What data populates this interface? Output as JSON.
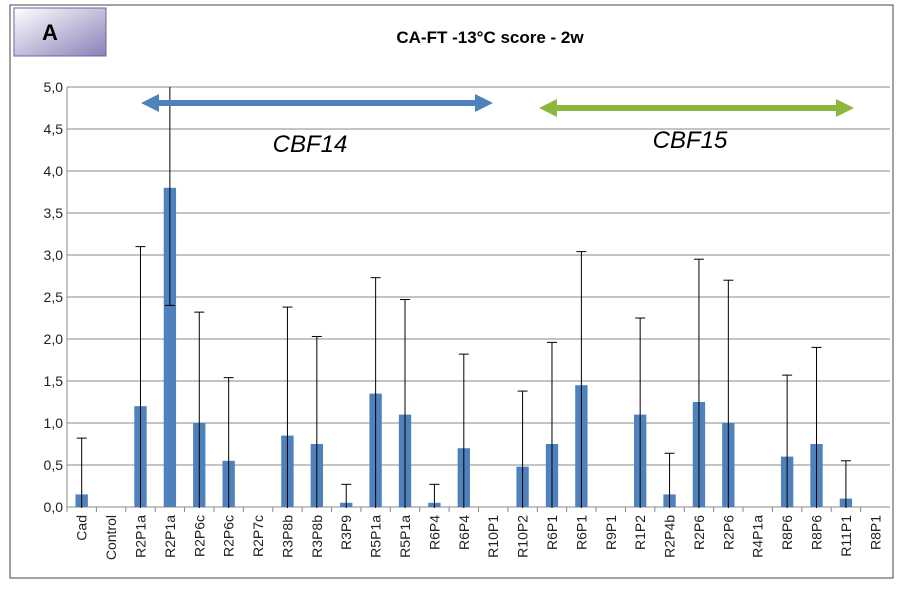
{
  "chart_data": {
    "type": "bar",
    "title": "CA-FT -13°C score - 2w",
    "panel_label": "A",
    "annotations": [
      "CBF14",
      "CBF15"
    ],
    "categories": [
      "Cad",
      "Control",
      "R2P1a",
      "R2P1a",
      "R2P6c",
      "R2P6c",
      "R2P7c",
      "R3P8b",
      "R3P8b",
      "R3P9",
      "R5P1a",
      "R5P1a",
      "R6P4",
      "R6P4",
      "R10P1",
      "R10P2",
      "R6P1",
      "R6P1",
      "R9P1",
      "R1P2",
      "R2P4b",
      "R2P6",
      "R2P6",
      "R4P1a",
      "R8P6",
      "R8P6",
      "R11P1",
      "R8P1"
    ],
    "values": [
      0.15,
      0,
      1.2,
      3.8,
      1.0,
      0.55,
      0,
      0.85,
      0.75,
      0.05,
      1.35,
      1.1,
      0.05,
      0.7,
      0,
      0.48,
      0.75,
      1.45,
      0,
      1.1,
      0.15,
      1.25,
      1.0,
      0,
      0.6,
      0.75,
      0.1,
      0
    ],
    "errors": [
      0.67,
      null,
      1.9,
      1.4,
      1.32,
      0.99,
      null,
      1.53,
      1.28,
      0.22,
      1.38,
      1.37,
      0.22,
      1.12,
      null,
      0.9,
      1.21,
      1.59,
      null,
      1.15,
      0.49,
      1.7,
      1.7,
      null,
      0.97,
      1.15,
      0.45,
      null
    ],
    "color": "#4f81bd",
    "ylim": [
      0,
      5
    ],
    "yticks": [
      {
        "value": 0,
        "label": "0,0"
      },
      {
        "value": 0.5,
        "label": "0,5"
      },
      {
        "value": 1,
        "label": "1,0"
      },
      {
        "value": 1.5,
        "label": "1,5"
      },
      {
        "value": 2,
        "label": "2,0"
      },
      {
        "value": 2.5,
        "label": "2,5"
      },
      {
        "value": 3,
        "label": "3,0"
      },
      {
        "value": 3.5,
        "label": "3,5"
      },
      {
        "value": 4,
        "label": "4,0"
      },
      {
        "value": 4.5,
        "label": "4,5"
      },
      {
        "value": 5,
        "label": "5,0"
      }
    ],
    "grid": true
  }
}
